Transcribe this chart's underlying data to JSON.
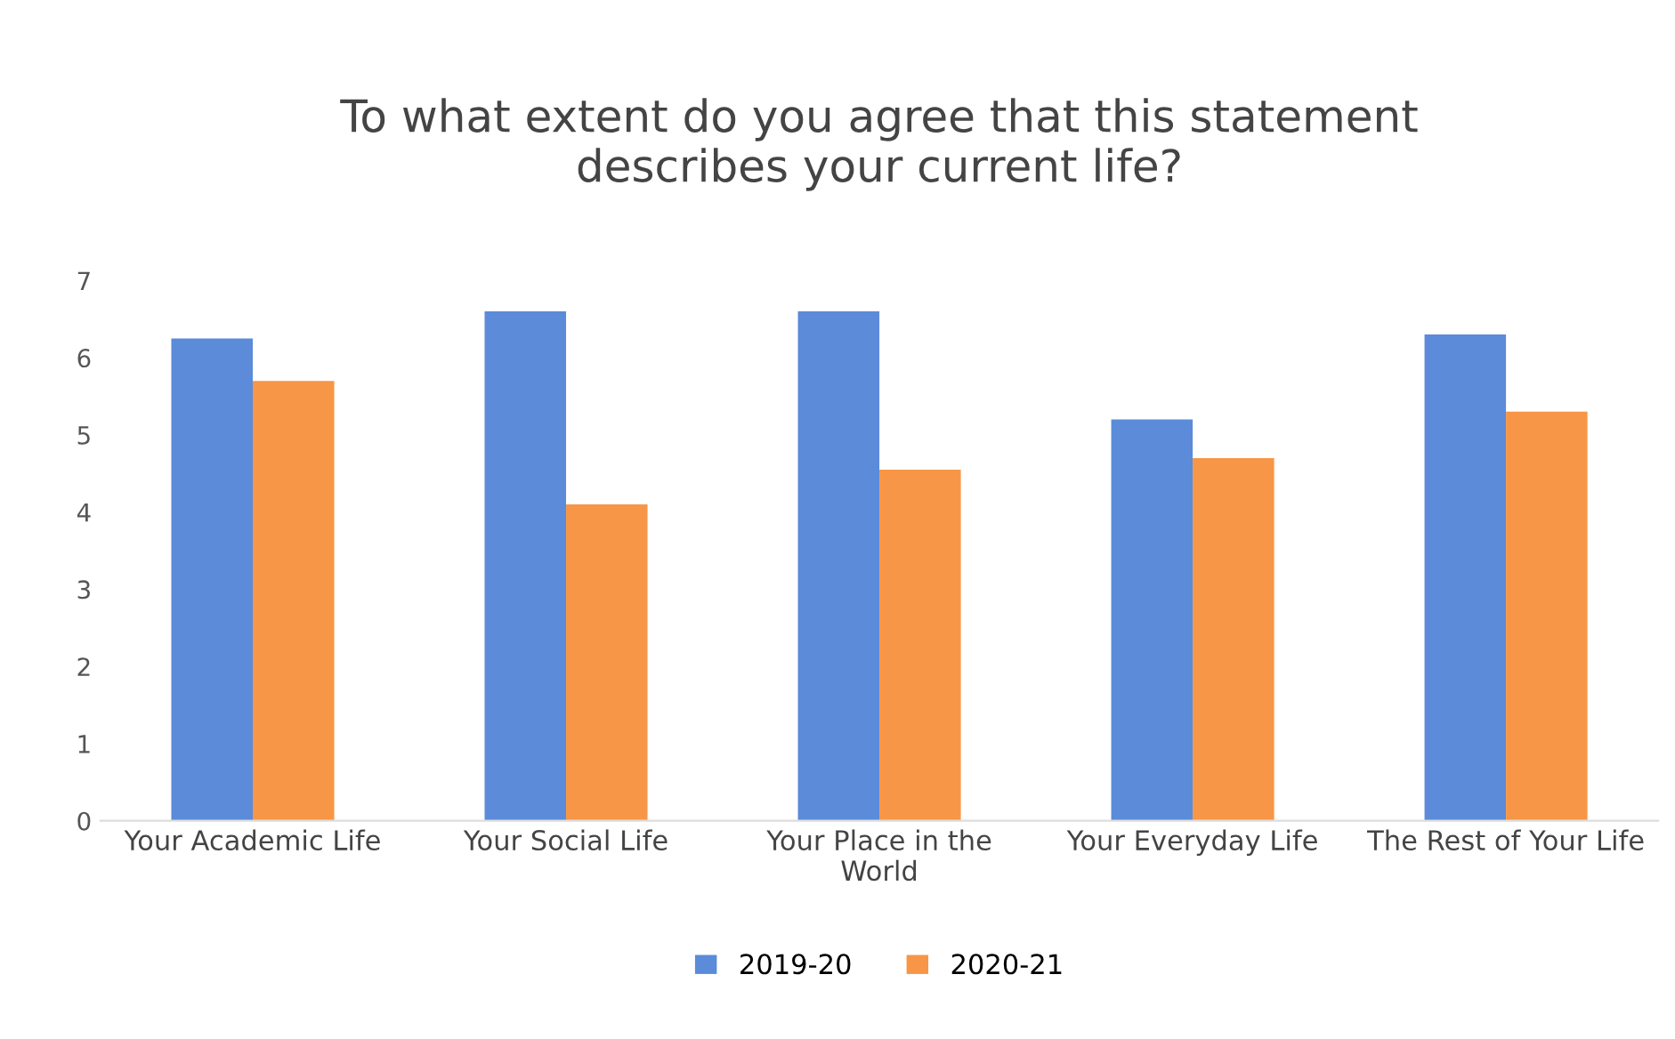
{
  "chart_data": {
    "type": "bar",
    "title": "To what extent do you agree that this statement\ndescribes your current life?",
    "categories": [
      "Your Academic Life",
      "Your Social Life",
      "Your Place in the\nWorld",
      "Your Everyday Life",
      "The Rest of Your Life"
    ],
    "series": [
      {
        "name": "2019-20",
        "color": "#5b8bd9",
        "values": [
          6.25,
          6.6,
          6.6,
          5.2,
          6.3
        ]
      },
      {
        "name": "2020-21",
        "color": "#f79646",
        "values": [
          5.7,
          4.1,
          4.55,
          4.7,
          5.3
        ]
      }
    ],
    "ylim": [
      0,
      7
    ],
    "yticks": [
      0,
      1,
      2,
      3,
      4,
      5,
      6,
      7
    ],
    "grid": false,
    "legend": "bottom"
  }
}
